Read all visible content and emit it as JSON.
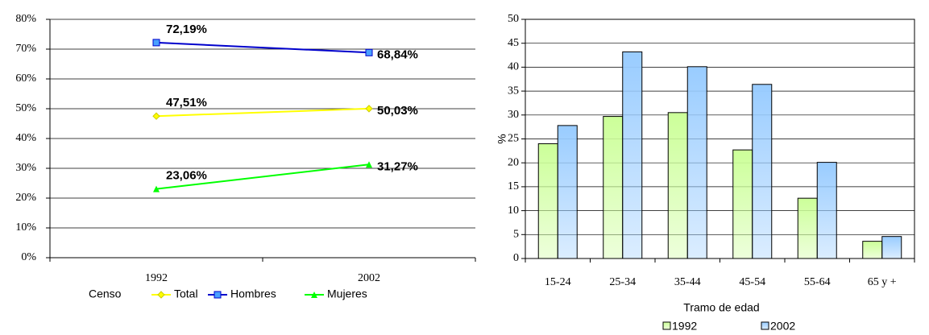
{
  "chart_data": [
    {
      "type": "line",
      "x_label": "Censo",
      "categories": [
        "1992",
        "2002"
      ],
      "ylim": [
        0,
        80
      ],
      "yticks": [
        {
          "value": 0,
          "label": "0%"
        },
        {
          "value": 10,
          "label": "10%"
        },
        {
          "value": 20,
          "label": "20%"
        },
        {
          "value": 30,
          "label": "30%"
        },
        {
          "value": 40,
          "label": "40%"
        },
        {
          "value": 50,
          "label": "50%"
        },
        {
          "value": 60,
          "label": "60%"
        },
        {
          "value": 70,
          "label": "70%"
        },
        {
          "value": 80,
          "label": "80%"
        }
      ],
      "grid": true,
      "series": [
        {
          "name": "Total",
          "color": "#ffff00",
          "marker": "diamond",
          "values": [
            47.51,
            50.03
          ],
          "value_labels": [
            "47,51%",
            "50,03%"
          ]
        },
        {
          "name": "Hombres",
          "color": "#0000cc",
          "marker": "square",
          "values": [
            72.19,
            68.84
          ],
          "value_labels": [
            "72,19%",
            "68,84%"
          ]
        },
        {
          "name": "Mujeres",
          "color": "#00ff00",
          "marker": "triangle",
          "values": [
            23.06,
            31.27
          ],
          "value_labels": [
            "23,06%",
            "31,27%"
          ]
        }
      ]
    },
    {
      "type": "bar",
      "x_label": "Tramo de edad",
      "y_label": "%",
      "categories": [
        "15-24",
        "25-34",
        "35-44",
        "45-54",
        "55-64",
        "65 y +"
      ],
      "ylim": [
        0,
        50
      ],
      "yticks": [
        0,
        5,
        10,
        15,
        20,
        25,
        30,
        35,
        40,
        45,
        50
      ],
      "grid": true,
      "series": [
        {
          "name": "1992",
          "color": "#ccff99",
          "values": [
            24.0,
            29.7,
            30.5,
            22.7,
            12.6,
            3.6
          ]
        },
        {
          "name": "2002",
          "color": "#99ccff",
          "values": [
            27.8,
            43.2,
            40.1,
            36.4,
            20.1,
            4.6
          ]
        }
      ]
    }
  ]
}
